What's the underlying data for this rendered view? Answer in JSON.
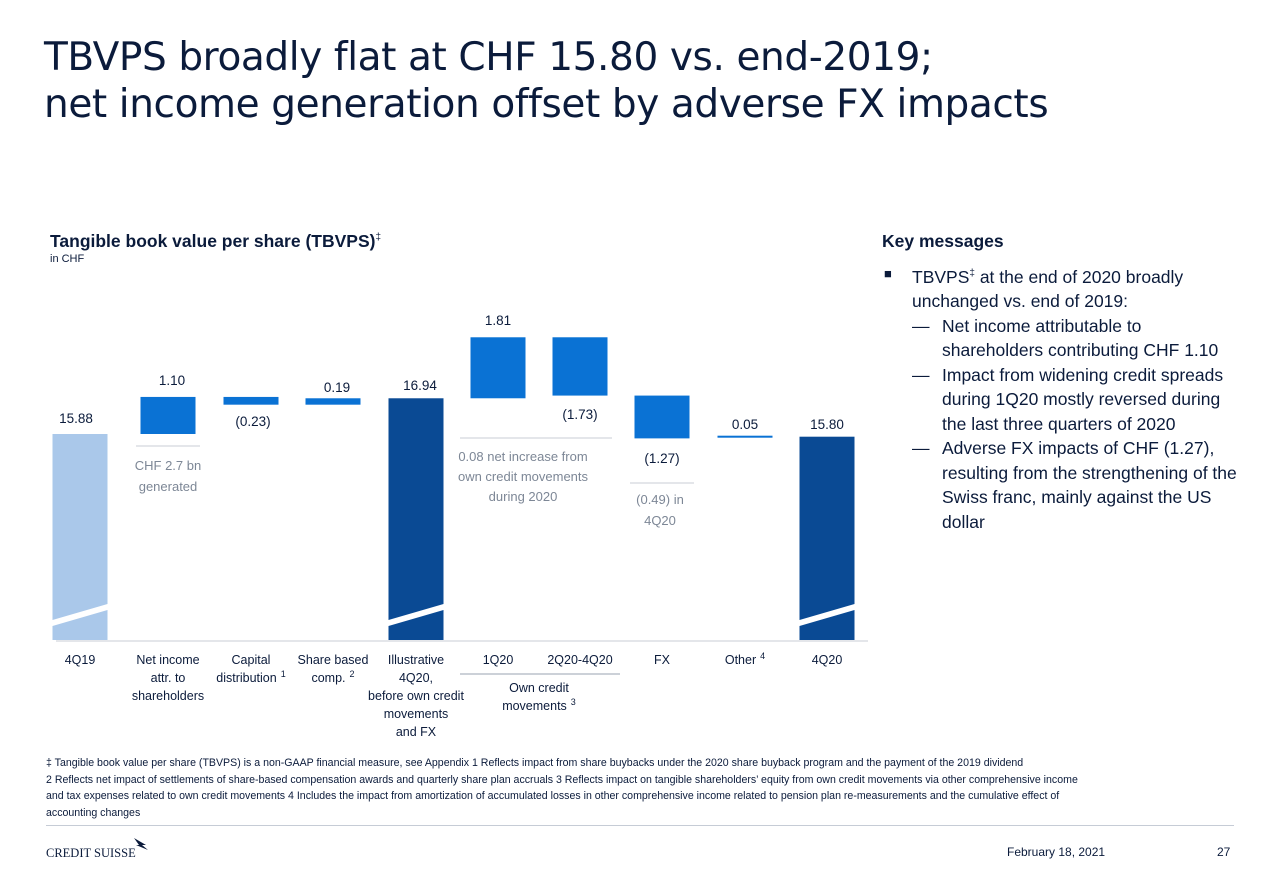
{
  "page": {
    "title_line1": "TBVPS broadly flat at CHF 15.80 vs. end-2019;",
    "title_line2": "net income generation offset by adverse FX impacts",
    "date": "February 18, 2021",
    "page_number": "27",
    "logo_text": "CREDIT SUISSE"
  },
  "chart_title": {
    "main": "Tangible book value per share (TBVPS)",
    "mark": "‡",
    "unit": "in CHF"
  },
  "colors": {
    "light_blue": "#aac8ea",
    "mid_blue": "#0a72d4",
    "dark_blue": "#0a4a94",
    "text_navy": "#0b1b3b",
    "annotation_gray": "#7d8796"
  },
  "chart_data": {
    "type": "bar",
    "subtype": "waterfall",
    "axis_break": true,
    "categories": [
      "4Q19",
      "Net income attr. to shareholders",
      "Capital distribution",
      "Share based comp.",
      "Illustrative 4Q20, before own credit movements and FX",
      "1Q20",
      "2Q20-4Q20",
      "FX",
      "Other",
      "4Q20"
    ],
    "tick_lines": [
      [
        "4Q19"
      ],
      [
        "Net income",
        "attr. to",
        "shareholders"
      ],
      [
        "Capital",
        "distribution"
      ],
      [
        "Share based",
        "comp."
      ],
      [
        "Illustrative",
        "4Q20,",
        "before own credit",
        "movements",
        "and FX"
      ],
      [
        "1Q20"
      ],
      [
        "2Q20-4Q20"
      ],
      [
        "FX"
      ],
      [
        "Other"
      ],
      [
        "4Q20"
      ]
    ],
    "tick_superscripts": [
      "",
      "",
      "1",
      "2",
      "",
      "",
      "",
      "",
      "4",
      ""
    ],
    "values": [
      15.88,
      1.1,
      -0.23,
      0.19,
      16.94,
      1.81,
      -1.73,
      -1.27,
      0.05,
      15.8
    ],
    "value_labels": [
      "15.88",
      "1.10",
      "(0.23)",
      "0.19",
      "16.94",
      "1.81",
      "(1.73)",
      "(1.27)",
      "0.05",
      "15.80"
    ],
    "bar_kind": [
      "total",
      "delta",
      "delta",
      "delta",
      "total",
      "delta",
      "delta",
      "delta",
      "delta",
      "total"
    ],
    "group_label": {
      "lines": [
        "Own credit",
        "movements"
      ],
      "superscript": "3"
    },
    "annotations": {
      "net_income": [
        "CHF 2.7 bn",
        "generated"
      ],
      "own_credit": [
        "0.08 net increase from",
        "own credit movements",
        "during 2020"
      ],
      "fx": [
        "(0.49) in",
        "4Q20"
      ]
    }
  },
  "key_messages": {
    "title": "Key messages",
    "bullet_prefix": "TBVPS",
    "bullet_mark": "‡",
    "bullet_rest": " at the end of 2020 broadly unchanged vs. end of 2019:",
    "subitems": [
      "Net income attributable to shareholders contributing CHF 1.10",
      "Impact from widening credit spreads during 1Q20 mostly reversed during the last three quarters of 2020",
      "Adverse FX impacts of CHF (1.27), resulting from the strengthening of the Swiss franc, mainly against the US dollar"
    ]
  },
  "footnotes": {
    "line1": "‡ Tangible book value per share (TBVPS) is a non-GAAP financial measure, see Appendix     1 Reflects impact from share buybacks under the 2020 share buyback program and the payment of the 2019 dividend",
    "line2": "2 Reflects net impact of settlements of share-based compensation awards and quarterly share plan accruals     3 Reflects impact on tangible shareholders’ equity from own credit movements via other comprehensive income",
    "line3": "and tax expenses related to own credit movements     4 Includes the impact from amortization of accumulated losses in other comprehensive income related to pension plan re-measurements and the cumulative effect of",
    "line4": "accounting changes"
  }
}
